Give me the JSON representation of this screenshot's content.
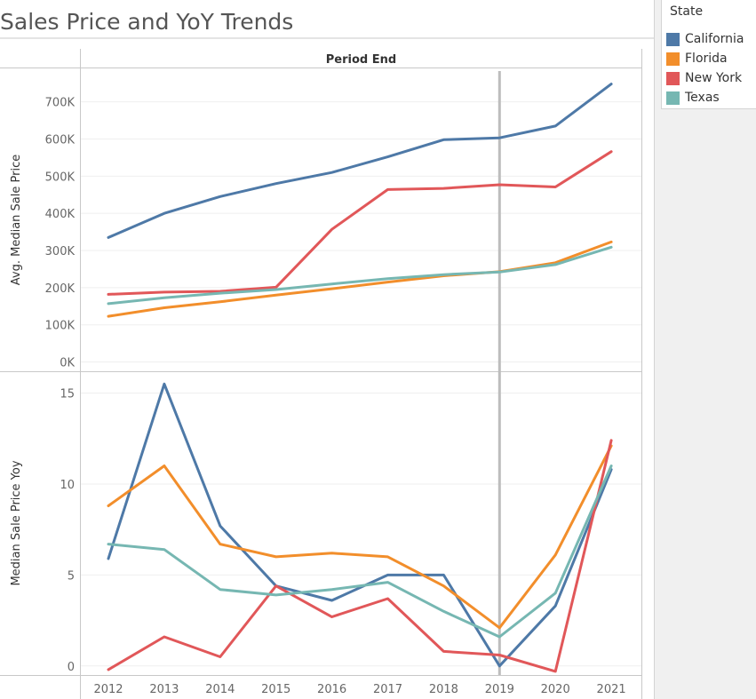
{
  "title": "Sales Price and YoY Trends",
  "legend": {
    "title": "State",
    "items": [
      {
        "label": "California",
        "color": "#4e79a7"
      },
      {
        "label": "Florida",
        "color": "#f28e2b"
      },
      {
        "label": "New York",
        "color": "#e15759"
      },
      {
        "label": "Texas",
        "color": "#76b7b2"
      }
    ]
  },
  "chart_data": [
    {
      "type": "line",
      "header": "Period End",
      "ylabel": "Avg. Median Sale Price",
      "xlabel": "",
      "x": [
        "2012",
        "2013",
        "2014",
        "2015",
        "2016",
        "2017",
        "2018",
        "2019",
        "2020",
        "2021"
      ],
      "yticks": [
        {
          "value": 0,
          "label": "0K"
        },
        {
          "value": 100000,
          "label": "100K"
        },
        {
          "value": 200000,
          "label": "200K"
        },
        {
          "value": 300000,
          "label": "300K"
        },
        {
          "value": 400000,
          "label": "400K"
        },
        {
          "value": 500000,
          "label": "500K"
        },
        {
          "value": 600000,
          "label": "600K"
        },
        {
          "value": 700000,
          "label": "700K"
        }
      ],
      "ylim": [
        -25000,
        790000
      ],
      "reference_line_x": "2019",
      "series": [
        {
          "name": "California",
          "color": "#4e79a7",
          "values": [
            335000,
            400000,
            445000,
            480000,
            510000,
            552000,
            598000,
            603000,
            635000,
            748000
          ]
        },
        {
          "name": "Florida",
          "color": "#f28e2b",
          "values": [
            123000,
            146000,
            162000,
            180000,
            197000,
            215000,
            232000,
            243000,
            267000,
            323000
          ]
        },
        {
          "name": "New York",
          "color": "#e15759",
          "values": [
            182000,
            188000,
            190000,
            201000,
            357000,
            464000,
            467000,
            477000,
            471000,
            566000
          ]
        },
        {
          "name": "Texas",
          "color": "#76b7b2",
          "values": [
            157000,
            173000,
            185000,
            195000,
            210000,
            224000,
            235000,
            242000,
            262000,
            309000
          ]
        }
      ]
    },
    {
      "type": "line",
      "ylabel": "Median Sale Price Yoy",
      "xlabel": "",
      "x": [
        "2012",
        "2013",
        "2014",
        "2015",
        "2016",
        "2017",
        "2018",
        "2019",
        "2020",
        "2021"
      ],
      "yticks": [
        {
          "value": 0,
          "label": "0"
        },
        {
          "value": 5,
          "label": "5"
        },
        {
          "value": 10,
          "label": "10"
        },
        {
          "value": 15,
          "label": "15"
        }
      ],
      "ylim": [
        -0.5,
        16.2
      ],
      "reference_line_x": "2019",
      "series": [
        {
          "name": "California",
          "color": "#4e79a7",
          "values": [
            5.9,
            15.5,
            7.7,
            4.4,
            3.6,
            5.0,
            5.0,
            0.0,
            3.3,
            10.8
          ]
        },
        {
          "name": "Florida",
          "color": "#f28e2b",
          "values": [
            8.8,
            11.0,
            6.7,
            6.0,
            6.2,
            6.0,
            4.4,
            2.1,
            6.1,
            12.1
          ]
        },
        {
          "name": "New York",
          "color": "#e15759",
          "values": [
            -0.2,
            1.6,
            0.5,
            4.4,
            2.7,
            3.7,
            0.8,
            0.6,
            -0.3,
            12.4
          ]
        },
        {
          "name": "Texas",
          "color": "#76b7b2",
          "values": [
            6.7,
            6.4,
            4.2,
            3.9,
            4.2,
            4.6,
            3.0,
            1.6,
            4.0,
            11.0
          ]
        }
      ]
    }
  ]
}
